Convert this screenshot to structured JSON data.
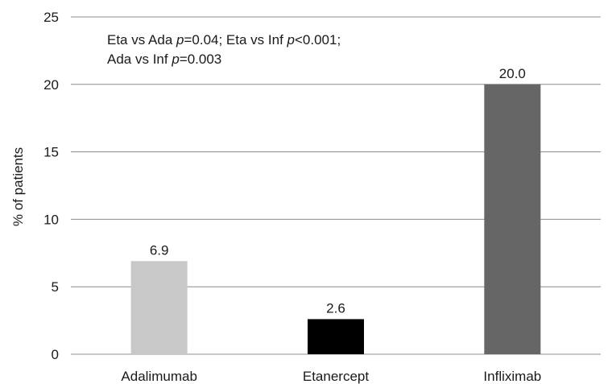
{
  "chart_data": {
    "type": "bar",
    "categories": [
      "Adalimumab",
      "Etanercept",
      "Infliximab"
    ],
    "values": [
      6.9,
      2.6,
      20.0
    ],
    "value_labels": [
      "6.9",
      "2.6",
      "20.0"
    ],
    "bar_colors": [
      "#c8c8c8",
      "#000000",
      "#666666"
    ],
    "ylabel": "% of patients",
    "xlabel": "",
    "ylim": [
      0,
      25
    ],
    "yticks": [
      "0",
      "5",
      "10",
      "15",
      "20",
      "25"
    ],
    "grid": true,
    "annotation": {
      "line1": [
        {
          "text": "Eta vs Ada ",
          "italic": false
        },
        {
          "text": "p",
          "italic": true
        },
        {
          "text": "=0.04; Eta vs Inf ",
          "italic": false
        },
        {
          "text": "p",
          "italic": true
        },
        {
          "text": "<0.001;",
          "italic": false
        }
      ],
      "line2": [
        {
          "text": "Ada vs Inf ",
          "italic": false
        },
        {
          "text": "p",
          "italic": true
        },
        {
          "text": "=0.003",
          "italic": false
        }
      ]
    }
  }
}
